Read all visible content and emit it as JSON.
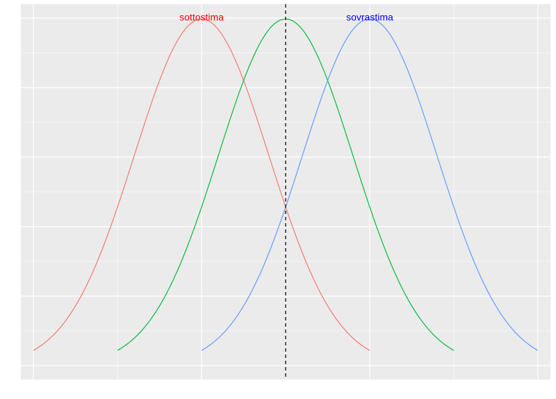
{
  "chart_data": {
    "type": "line",
    "xlim": [
      -3.15,
      3.15
    ],
    "ylim": [
      -0.02,
      0.52
    ],
    "grid": true,
    "reference_line": {
      "x": 0,
      "style": "dashed",
      "color": "#333333"
    },
    "series": [
      {
        "mean": -1,
        "sd": 0.8,
        "x_range": [
          -3,
          1
        ],
        "color": "#F8766D"
      },
      {
        "mean": 0,
        "sd": 0.8,
        "x_range": [
          -2,
          2
        ],
        "color": "#00BA38"
      },
      {
        "mean": 1,
        "sd": 0.8,
        "x_range": [
          -1,
          3
        ],
        "color": "#619CFF"
      }
    ],
    "annotations": [
      {
        "text": "sottostima",
        "x": -1,
        "y": 0.5,
        "color": "#FF0000"
      },
      {
        "text": "sovrastima",
        "x": 1,
        "y": 0.5,
        "color": "#0000FF"
      }
    ]
  }
}
